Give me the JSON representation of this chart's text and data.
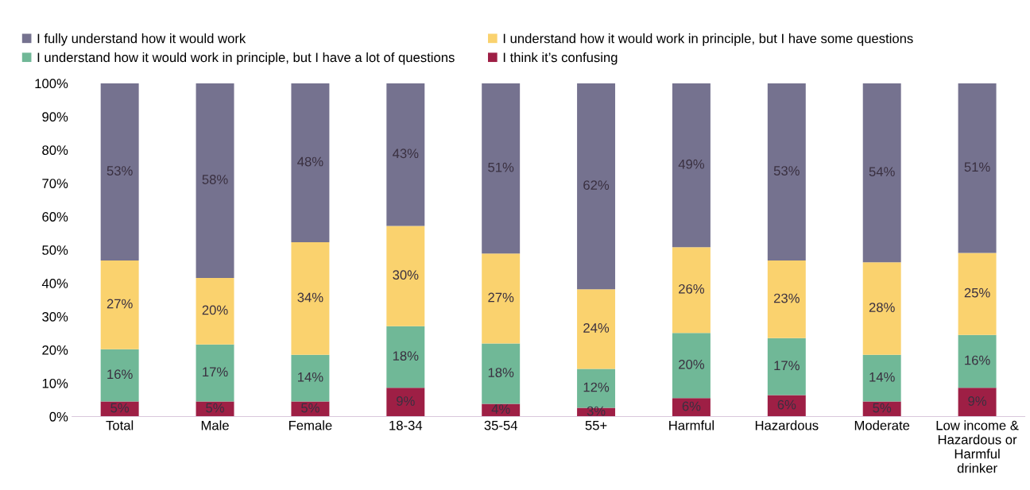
{
  "chart_data": {
    "type": "bar",
    "stacked": true,
    "data_labels": false,
    "legend": "top",
    "grid": false,
    "categories": [
      "Total",
      "Male",
      "Female",
      "18-34",
      "35-54",
      "55+",
      "Harmful",
      "Hazardous",
      "Moderate",
      "Low income & Hazardous or Harmful drinker"
    ],
    "ylim": [
      0,
      100
    ],
    "yticks": [
      {
        "value": 0,
        "label": "0%"
      },
      {
        "value": 10,
        "label": "10%"
      },
      {
        "value": 20,
        "label": "20%"
      },
      {
        "value": 30,
        "label": "30%"
      },
      {
        "value": 40,
        "label": "40%"
      },
      {
        "value": 50,
        "label": "50%"
      },
      {
        "value": 60,
        "label": "60%"
      },
      {
        "value": 70,
        "label": "70%"
      },
      {
        "value": 80,
        "label": "80%"
      },
      {
        "value": 90,
        "label": "90%"
      },
      {
        "value": 100,
        "label": "100%"
      }
    ],
    "series": [
      {
        "name": "I think it’s confusing",
        "color": "#9e1f45",
        "values": [
          4.5,
          4.5,
          4.5,
          8.6,
          3.8,
          2.6,
          5.5,
          6.4,
          4.5,
          8.6
        ],
        "value_labels": [
          "5%",
          "5%",
          "5%",
          "9%",
          "4%",
          "3%",
          "6%",
          "6%",
          "5%",
          "9%"
        ]
      },
      {
        "name": "I understand how it would work in principle, but I have a lot of questions",
        "color": "#70b897",
        "values": [
          15.7,
          17.1,
          14.0,
          18.5,
          18.1,
          11.7,
          19.6,
          17.1,
          14.0,
          15.9
        ],
        "value_labels": [
          "16%",
          "17%",
          "14%",
          "18%",
          "18%",
          "12%",
          "20%",
          "17%",
          "14%",
          "16%"
        ]
      },
      {
        "name": "I understand how it would work in principle, but I have some questions",
        "color": "#fad26e",
        "values": [
          26.6,
          20.0,
          33.8,
          30.1,
          27.0,
          23.9,
          25.7,
          23.3,
          27.8,
          24.6
        ],
        "value_labels": [
          "27%",
          "20%",
          "34%",
          "30%",
          "27%",
          "24%",
          "26%",
          "23%",
          "28%",
          "25%"
        ]
      },
      {
        "name": "I fully understand how it would work",
        "color": "#75728f",
        "values": [
          53.2,
          58.4,
          47.7,
          42.8,
          51.1,
          61.8,
          49.2,
          53.2,
          53.7,
          50.9
        ],
        "value_labels": [
          "53%",
          "58%",
          "48%",
          "43%",
          "51%",
          "62%",
          "49%",
          "53%",
          "54%",
          "51%"
        ]
      }
    ]
  }
}
